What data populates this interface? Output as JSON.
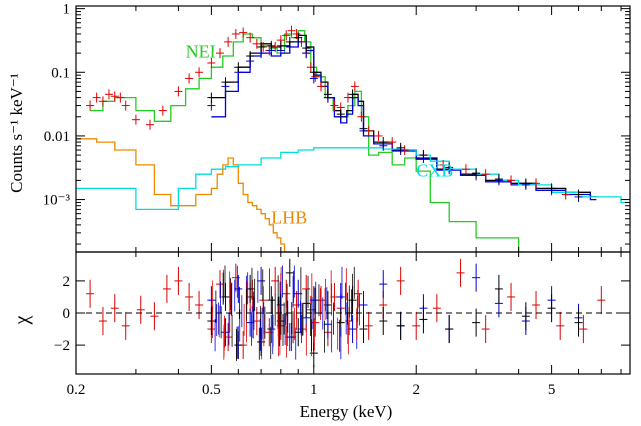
{
  "chart_data": [
    {
      "panel": "spectrum",
      "type": "line",
      "x_scale": "log",
      "y_scale": "log",
      "xlim": [
        0.2,
        8.5
      ],
      "ylim": [
        0.00015,
        1.1
      ],
      "ylabel": "Counts s⁻¹ keV⁻¹",
      "y_ticks": [
        {
          "value": 0.001,
          "label": "10⁻³"
        },
        {
          "value": 0.01,
          "label": "0.01"
        },
        {
          "value": 0.1,
          "label": "0.1"
        },
        {
          "value": 1,
          "label": "1"
        }
      ],
      "series_labels": [
        {
          "text": "NEI",
          "color": "#22cc22",
          "at_x": 0.42,
          "at_y": 0.17
        },
        {
          "text": "CXB",
          "color": "#00dddd",
          "at_x": 2.0,
          "at_y": 0.0023
        },
        {
          "text": "LHB",
          "color": "#ee8800",
          "at_x": 0.75,
          "at_y": 0.00042
        }
      ],
      "series": [
        {
          "color": "#22cc22",
          "step": true,
          "x": [
            0.22,
            0.24,
            0.26,
            0.3,
            0.34,
            0.38,
            0.42,
            0.46,
            0.5,
            0.54,
            0.58,
            0.62,
            0.66,
            0.7,
            0.74,
            0.78,
            0.82,
            0.86,
            0.9,
            0.94,
            0.98,
            1.02,
            1.08,
            1.14,
            1.2,
            1.26,
            1.32,
            1.38,
            1.45,
            1.55,
            1.7,
            1.85,
            2.0,
            2.2,
            2.5,
            3.0,
            4.0
          ],
          "y": [
            0.025,
            0.035,
            0.04,
            0.025,
            0.017,
            0.03,
            0.055,
            0.08,
            0.12,
            0.18,
            0.3,
            0.4,
            0.35,
            0.26,
            0.24,
            0.2,
            0.4,
            0.35,
            0.45,
            0.3,
            0.12,
            0.085,
            0.04,
            0.025,
            0.02,
            0.03,
            0.05,
            0.02,
            0.005,
            0.0055,
            0.0035,
            0.0045,
            0.0028,
            0.0009,
            0.00045,
            0.00025,
            0.00015
          ]
        },
        {
          "color": "#000000",
          "step": true,
          "x": [
            0.5,
            0.55,
            0.6,
            0.65,
            0.7,
            0.75,
            0.8,
            0.85,
            0.9,
            0.95,
            1.0,
            1.05,
            1.1,
            1.15,
            1.2,
            1.25,
            1.3,
            1.35,
            1.4,
            1.5,
            1.7,
            2.0,
            2.3,
            2.7,
            3.2,
            3.8,
            4.5,
            5.5,
            6.5
          ],
          "y": [
            0.04,
            0.07,
            0.12,
            0.2,
            0.28,
            0.25,
            0.26,
            0.3,
            0.38,
            0.25,
            0.1,
            0.07,
            0.04,
            0.025,
            0.02,
            0.025,
            0.045,
            0.035,
            0.012,
            0.008,
            0.006,
            0.0045,
            0.003,
            0.0025,
            0.002,
            0.0018,
            0.0015,
            0.0013,
            0.0011
          ]
        },
        {
          "color": "#0000dd",
          "step": true,
          "x": [
            0.5,
            0.55,
            0.6,
            0.65,
            0.7,
            0.75,
            0.8,
            0.85,
            0.9,
            0.95,
            1.0,
            1.05,
            1.1,
            1.15,
            1.2,
            1.25,
            1.3,
            1.35,
            1.4,
            1.5,
            1.7,
            2.0,
            2.3,
            2.7,
            3.2,
            3.8,
            4.5,
            5.5,
            6.5
          ],
          "y": [
            0.02,
            0.05,
            0.1,
            0.18,
            0.2,
            0.18,
            0.2,
            0.25,
            0.3,
            0.22,
            0.09,
            0.06,
            0.04,
            0.02,
            0.016,
            0.022,
            0.04,
            0.03,
            0.01,
            0.0075,
            0.0058,
            0.0043,
            0.0029,
            0.0024,
            0.0019,
            0.0017,
            0.0014,
            0.0012,
            0.001
          ]
        },
        {
          "color": "#ee8800",
          "step": true,
          "x": [
            0.2,
            0.23,
            0.26,
            0.3,
            0.34,
            0.38,
            0.42,
            0.45,
            0.48,
            0.5,
            0.52,
            0.54,
            0.56,
            0.58,
            0.6,
            0.62,
            0.64,
            0.66,
            0.68,
            0.7,
            0.72,
            0.74,
            0.76,
            0.78,
            0.8,
            0.82
          ],
          "y": [
            0.009,
            0.008,
            0.006,
            0.0035,
            0.0012,
            0.0008,
            0.0008,
            0.0012,
            0.0012,
            0.0015,
            0.0025,
            0.0035,
            0.0045,
            0.0035,
            0.0018,
            0.0012,
            0.0009,
            0.0008,
            0.0007,
            0.0006,
            0.0005,
            0.0004,
            0.0003,
            0.00025,
            0.0002,
            0.00015
          ]
        },
        {
          "color": "#00dddd",
          "step": true,
          "x": [
            0.2,
            0.25,
            0.3,
            0.35,
            0.4,
            0.45,
            0.5,
            0.55,
            0.6,
            0.7,
            0.8,
            0.9,
            1.0,
            1.2,
            1.4,
            1.6,
            1.8,
            2.0,
            2.2,
            2.5,
            3.0,
            3.5,
            4.0,
            5.0,
            6.0,
            8.0
          ],
          "y": [
            0.0015,
            0.0015,
            0.0007,
            0.0007,
            0.0015,
            0.0025,
            0.003,
            0.0033,
            0.0035,
            0.0045,
            0.0055,
            0.006,
            0.0065,
            0.0065,
            0.0065,
            0.0062,
            0.006,
            0.005,
            0.004,
            0.003,
            0.0025,
            0.002,
            0.0017,
            0.0013,
            0.0011,
            0.0009
          ]
        }
      ],
      "points": [
        {
          "color": "#dd0000",
          "x": [
            0.22,
            0.23,
            0.24,
            0.25,
            0.26,
            0.27,
            0.28,
            0.3,
            0.33,
            0.36,
            0.4,
            0.43,
            0.46,
            0.5,
            0.53,
            0.56,
            0.59,
            0.62,
            0.65,
            0.68,
            0.71,
            0.74,
            0.77,
            0.8,
            0.83,
            0.86,
            0.89,
            0.92,
            0.95,
            0.98,
            1.01,
            1.05,
            1.1,
            1.15,
            1.2,
            1.26,
            1.32,
            1.38,
            1.45,
            1.55,
            1.7,
            1.85,
            2.1,
            2.4,
            2.8,
            3.2,
            3.8,
            4.5,
            5.5
          ],
          "y": [
            0.03,
            0.04,
            0.035,
            0.045,
            0.042,
            0.04,
            0.03,
            0.018,
            0.015,
            0.025,
            0.05,
            0.08,
            0.1,
            0.14,
            0.2,
            0.3,
            0.4,
            0.42,
            0.35,
            0.28,
            0.25,
            0.22,
            0.25,
            0.32,
            0.38,
            0.45,
            0.4,
            0.3,
            0.2,
            0.12,
            0.085,
            0.06,
            0.04,
            0.03,
            0.028,
            0.04,
            0.06,
            0.02,
            0.012,
            0.01,
            0.008,
            0.006,
            0.005,
            0.0035,
            0.003,
            0.0025,
            0.002,
            0.0018,
            0.0012
          ]
        },
        {
          "color": "#0000dd",
          "x": [
            0.5,
            0.55,
            0.6,
            0.65,
            0.7,
            0.75,
            0.8,
            0.85,
            0.9,
            0.95,
            1.0,
            1.1,
            1.2,
            1.3,
            1.4,
            1.6,
            1.8,
            2.1,
            2.5,
            3.0,
            3.5,
            4.2,
            5.0,
            6.0
          ],
          "y": [
            0.03,
            0.06,
            0.1,
            0.15,
            0.2,
            0.22,
            0.22,
            0.25,
            0.3,
            0.2,
            0.08,
            0.04,
            0.02,
            0.04,
            0.012,
            0.007,
            0.006,
            0.0045,
            0.003,
            0.0024,
            0.002,
            0.0017,
            0.0014,
            0.0011
          ]
        },
        {
          "color": "#000000",
          "x": [
            0.5,
            0.55,
            0.6,
            0.65,
            0.7,
            0.75,
            0.8,
            0.85,
            0.9,
            0.95,
            1.0,
            1.1,
            1.2,
            1.3,
            1.4,
            1.6,
            1.8,
            2.1,
            2.5,
            3.0,
            3.5,
            4.2,
            5.0,
            6.0
          ],
          "y": [
            0.04,
            0.07,
            0.12,
            0.18,
            0.25,
            0.26,
            0.26,
            0.3,
            0.35,
            0.24,
            0.1,
            0.045,
            0.022,
            0.045,
            0.013,
            0.008,
            0.0065,
            0.005,
            0.0032,
            0.0026,
            0.0021,
            0.0018,
            0.0015,
            0.0012
          ]
        }
      ]
    },
    {
      "panel": "residuals",
      "type": "scatter",
      "x_scale": "log",
      "xlim": [
        0.2,
        8.5
      ],
      "ylim": [
        -3.8,
        3.8
      ],
      "ylabel": "χ",
      "xlabel": "Energy (keV)",
      "x_ticks": [
        {
          "value": 0.2,
          "label": "0.2"
        },
        {
          "value": 0.5,
          "label": "0.5"
        },
        {
          "value": 1,
          "label": "1"
        },
        {
          "value": 2,
          "label": "2"
        },
        {
          "value": 5,
          "label": "5"
        }
      ],
      "y_ticks": [
        {
          "value": -2,
          "label": "−2"
        },
        {
          "value": 0,
          "label": "0"
        },
        {
          "value": 2,
          "label": "2"
        }
      ],
      "zero_line": "dashed",
      "points": [
        {
          "color": "#dd0000",
          "x": [
            0.22,
            0.24,
            0.26,
            0.28,
            0.31,
            0.34,
            0.37,
            0.4,
            0.43,
            0.46,
            0.5,
            0.53,
            0.56,
            0.59,
            0.62,
            0.65,
            0.68,
            0.71,
            0.74,
            0.77,
            0.8,
            0.83,
            0.86,
            0.89,
            0.92,
            0.95,
            0.98,
            1.01,
            1.05,
            1.1,
            1.15,
            1.2,
            1.27,
            1.35,
            1.45,
            1.6,
            1.8,
            2.0,
            2.3,
            2.7,
            3.2,
            3.8,
            4.5,
            5.3,
            6.2,
            7.0
          ],
          "y": [
            1.2,
            -0.5,
            0.3,
            -0.8,
            0.2,
            -0.2,
            1.5,
            2.0,
            1.0,
            0.5,
            -1.0,
            1.8,
            -1.5,
            2.2,
            -2.0,
            1.0,
            -0.5,
            0.8,
            -1.2,
            2.0,
            -0.8,
            1.2,
            -1.5,
            0.5,
            -1.0,
            1.5,
            0.2,
            -0.6,
            0.8,
            -1.2,
            1.0,
            0.3,
            -0.5,
            1.2,
            -0.8,
            0.5,
            2.0,
            -0.8,
            0.3,
            2.5,
            -1.0,
            1.0,
            0.5,
            -0.8,
            -1.0,
            0.8
          ]
        },
        {
          "color": "#0000dd",
          "x": [
            0.5,
            0.55,
            0.6,
            0.65,
            0.7,
            0.75,
            0.8,
            0.85,
            0.9,
            0.95,
            1.0,
            1.1,
            1.2,
            1.3,
            1.4,
            1.6,
            1.8,
            2.1,
            2.5,
            3.0,
            3.5,
            4.2,
            5.0,
            6.0
          ],
          "y": [
            0.8,
            -1.2,
            1.5,
            -0.6,
            2.0,
            -1.0,
            0.5,
            -1.5,
            1.2,
            -0.3,
            0.8,
            -0.7,
            1.0,
            -1.0,
            0.5,
            1.8,
            -0.8,
            0.3,
            -1.0,
            2.2,
            0.6,
            -0.5,
            0.8,
            -0.3
          ]
        },
        {
          "color": "#000000",
          "x": [
            0.5,
            0.55,
            0.6,
            0.65,
            0.7,
            0.75,
            0.8,
            0.85,
            0.9,
            0.95,
            1.0,
            1.1,
            1.2,
            1.3,
            1.4,
            1.6,
            1.8,
            2.1,
            2.5,
            3.0,
            3.5,
            4.2,
            5.0,
            6.0
          ],
          "y": [
            -0.5,
            1.0,
            -2.0,
            1.5,
            -1.8,
            0.8,
            -0.5,
            2.5,
            -1.2,
            0.6,
            -2.5,
            0.5,
            -0.6,
            0.8,
            -1.0,
            -0.5,
            -0.8,
            -0.4,
            -1.0,
            -0.6,
            1.5,
            -0.2,
            0.3,
            -0.6
          ]
        }
      ]
    }
  ]
}
